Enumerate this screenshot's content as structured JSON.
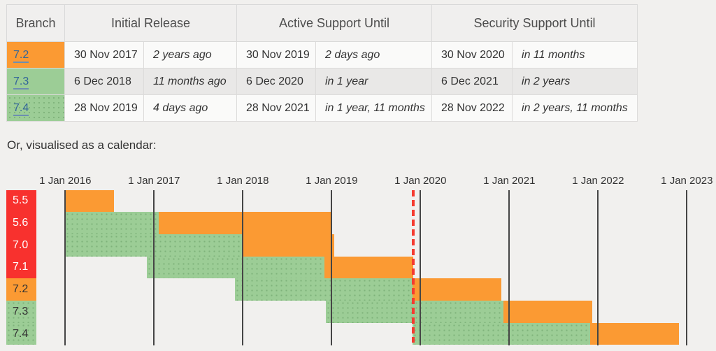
{
  "caption": "Or, visualised as a calendar:",
  "table": {
    "header": {
      "branch": "Branch",
      "groups": [
        "Initial Release",
        "Active Support Until",
        "Security Support Until"
      ]
    },
    "rows": [
      {
        "branch": "7.2",
        "status": "security",
        "cells": [
          "30 Nov 2017",
          "2 years ago",
          "30 Nov 2019",
          "2 days ago",
          "30 Nov 2020",
          "in 11 months"
        ]
      },
      {
        "branch": "7.3",
        "status": "active",
        "cells": [
          "6 Dec 2018",
          "11 months ago",
          "6 Dec 2020",
          "in 1 year",
          "6 Dec 2021",
          "in 2 years"
        ]
      },
      {
        "branch": "7.4",
        "status": "active",
        "cells": [
          "28 Nov 2019",
          "4 days ago",
          "28 Nov 2021",
          "in 1 year, 11 months",
          "28 Nov 2022",
          "in 2 years, 11 months"
        ]
      }
    ]
  },
  "chart_data": {
    "type": "gantt-calendar",
    "x_axis": {
      "labels": [
        "1 Jan 2016",
        "1 Jan 2017",
        "1 Jan 2018",
        "1 Jan 2019",
        "1 Jan 2020",
        "1 Jan 2021",
        "1 Jan 2022",
        "1 Jan 2023"
      ],
      "years": [
        2016,
        2017,
        2018,
        2019,
        2020,
        2021,
        2022,
        2023
      ]
    },
    "branches": [
      {
        "label": "5.5",
        "status": "eol",
        "active_support": null,
        "security_support": [
          2016.0,
          2016.55
        ]
      },
      {
        "label": "5.6",
        "status": "eol",
        "active_support": [
          2016.0,
          2017.05
        ],
        "security_support": [
          2017.05,
          2019.0
        ]
      },
      {
        "label": "7.0",
        "status": "eol",
        "active_support": [
          2016.0,
          2018.0
        ],
        "security_support": [
          2018.0,
          2019.03
        ]
      },
      {
        "label": "7.1",
        "status": "eol",
        "active_support": [
          2016.917,
          2018.917
        ],
        "security_support": [
          2018.917,
          2019.917
        ]
      },
      {
        "label": "7.2",
        "status": "security",
        "active_support": [
          2017.913,
          2019.913
        ],
        "security_support": [
          2019.913,
          2020.913
        ]
      },
      {
        "label": "7.3",
        "status": "active",
        "active_support": [
          2018.932,
          2020.932
        ],
        "security_support": [
          2020.932,
          2021.932
        ]
      },
      {
        "label": "7.4",
        "status": "active",
        "active_support": [
          2019.908,
          2021.908
        ],
        "security_support": [
          2021.908,
          2022.908
        ]
      }
    ],
    "today_marker": 2019.92,
    "legend": {
      "active_color": "#9ccd96",
      "security_color": "#fb9a33",
      "eol_color": "#f8312e",
      "today_line_color": "#f53b30"
    }
  }
}
